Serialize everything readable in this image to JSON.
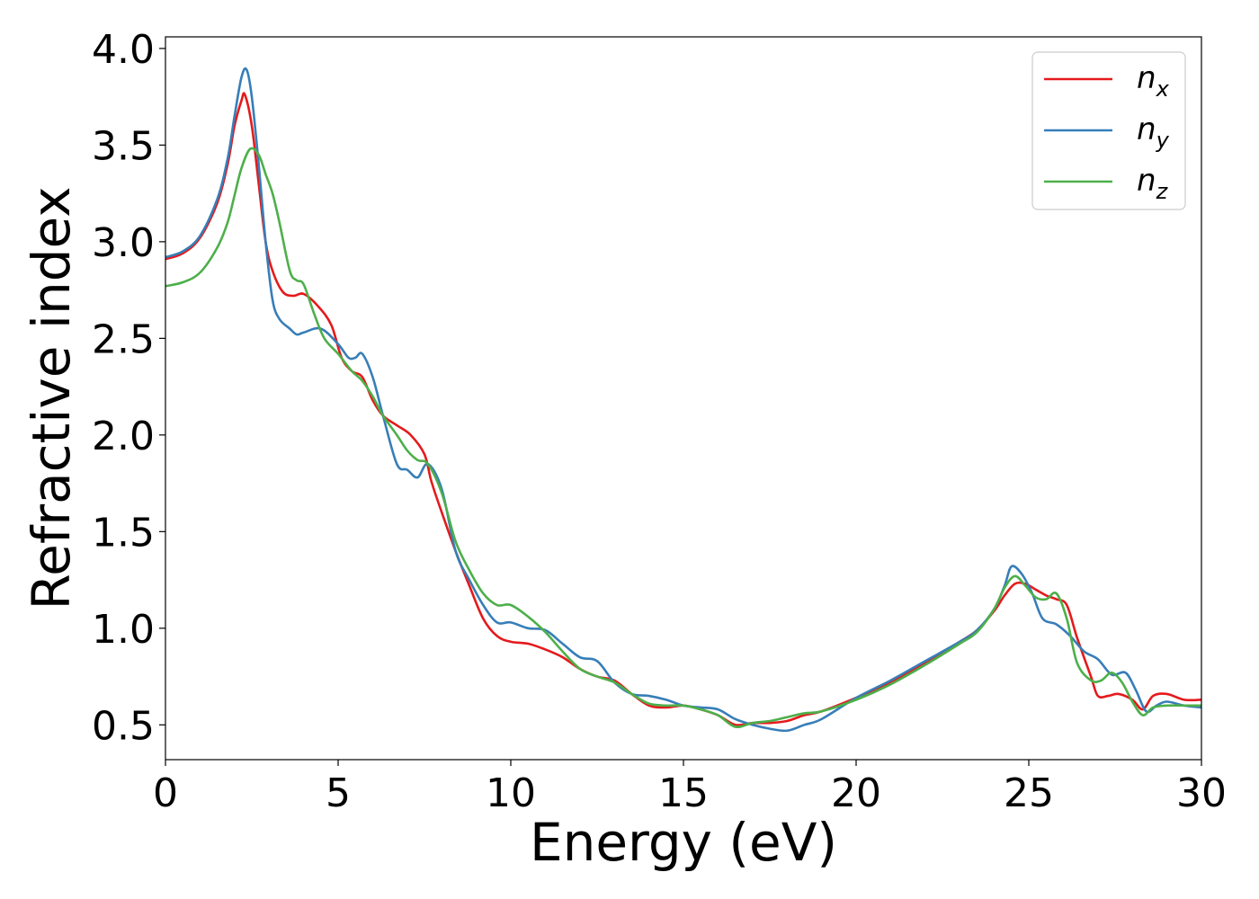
{
  "chart_data": {
    "type": "line",
    "title": "",
    "xlabel": "Energy (eV)",
    "ylabel": "Refractive index",
    "xlim": [
      0,
      30
    ],
    "ylim": [
      0.32,
      4.06
    ],
    "xticks": [
      0,
      5,
      10,
      15,
      20,
      25,
      30
    ],
    "xtick_labels": [
      "0",
      "5",
      "10",
      "15",
      "20",
      "25",
      "30"
    ],
    "yticks": [
      0.5,
      1.0,
      1.5,
      2.0,
      2.5,
      3.0,
      3.5,
      4.0
    ],
    "ytick_labels": [
      "0.5",
      "1.0",
      "1.5",
      "2.0",
      "2.5",
      "3.0",
      "3.5",
      "4.0"
    ],
    "grid": false,
    "legend_position": "top-right",
    "series": [
      {
        "name": "n_x",
        "label_main": "n",
        "label_sub": "x",
        "color": "#e41a1c",
        "x": [
          0,
          0.5,
          1.0,
          1.5,
          1.8,
          2.0,
          2.2,
          2.3,
          2.5,
          2.7,
          2.9,
          3.1,
          3.4,
          3.7,
          4.0,
          4.4,
          4.8,
          5.1,
          5.4,
          5.7,
          6.0,
          6.3,
          6.7,
          7.1,
          7.5,
          7.7,
          8.0,
          8.4,
          8.8,
          9.2,
          9.6,
          10.0,
          10.5,
          11.0,
          11.5,
          12.0,
          12.5,
          13.0,
          13.5,
          14.0,
          14.5,
          15.0,
          15.5,
          16.0,
          16.5,
          17.0,
          17.5,
          18.0,
          18.5,
          19.0,
          20.0,
          21.0,
          22.0,
          23.0,
          23.5,
          24.0,
          24.3,
          24.6,
          24.9,
          25.2,
          25.5,
          25.8,
          26.1,
          26.4,
          26.8,
          27.0,
          27.3,
          27.6,
          28.0,
          28.3,
          28.6,
          29.0,
          29.5,
          30.0
        ],
        "y": [
          2.91,
          2.94,
          3.02,
          3.2,
          3.4,
          3.6,
          3.73,
          3.76,
          3.6,
          3.3,
          3.0,
          2.85,
          2.74,
          2.72,
          2.73,
          2.67,
          2.57,
          2.4,
          2.33,
          2.3,
          2.18,
          2.1,
          2.05,
          2.0,
          1.9,
          1.76,
          1.6,
          1.4,
          1.22,
          1.05,
          0.96,
          0.93,
          0.92,
          0.89,
          0.85,
          0.79,
          0.75,
          0.73,
          0.66,
          0.6,
          0.59,
          0.6,
          0.58,
          0.55,
          0.5,
          0.51,
          0.51,
          0.52,
          0.55,
          0.57,
          0.64,
          0.72,
          0.82,
          0.93,
          0.99,
          1.09,
          1.17,
          1.23,
          1.23,
          1.2,
          1.17,
          1.15,
          1.12,
          0.95,
          0.75,
          0.65,
          0.65,
          0.66,
          0.63,
          0.58,
          0.65,
          0.66,
          0.63,
          0.63
        ]
      },
      {
        "name": "n_y",
        "label_main": "n",
        "label_sub": "y",
        "color": "#377eb8",
        "x": [
          0,
          0.5,
          1.0,
          1.5,
          1.8,
          2.0,
          2.2,
          2.35,
          2.5,
          2.7,
          2.9,
          3.1,
          3.3,
          3.6,
          3.8,
          4.0,
          4.5,
          5.0,
          5.3,
          5.5,
          5.7,
          6.0,
          6.3,
          6.7,
          7.0,
          7.3,
          7.6,
          8.0,
          8.4,
          8.8,
          9.2,
          9.6,
          10.0,
          10.5,
          11.0,
          11.5,
          12.0,
          12.5,
          13.0,
          13.5,
          14.0,
          14.5,
          15.0,
          15.5,
          16.0,
          16.5,
          17.0,
          17.5,
          18.0,
          18.5,
          19.0,
          20.0,
          21.0,
          22.0,
          23.0,
          23.5,
          24.0,
          24.3,
          24.5,
          24.8,
          25.1,
          25.4,
          25.8,
          26.2,
          26.6,
          27.0,
          27.4,
          27.8,
          28.1,
          28.4,
          28.7,
          29.0,
          29.5,
          30.0
        ],
        "y": [
          2.92,
          2.95,
          3.03,
          3.22,
          3.43,
          3.65,
          3.85,
          3.89,
          3.75,
          3.4,
          3.0,
          2.7,
          2.6,
          2.55,
          2.52,
          2.53,
          2.55,
          2.47,
          2.4,
          2.4,
          2.42,
          2.3,
          2.1,
          1.85,
          1.82,
          1.78,
          1.85,
          1.72,
          1.4,
          1.25,
          1.12,
          1.03,
          1.03,
          1.0,
          0.99,
          0.92,
          0.85,
          0.83,
          0.72,
          0.66,
          0.65,
          0.63,
          0.6,
          0.59,
          0.58,
          0.53,
          0.5,
          0.48,
          0.47,
          0.5,
          0.53,
          0.64,
          0.73,
          0.83,
          0.93,
          0.99,
          1.1,
          1.22,
          1.32,
          1.28,
          1.18,
          1.05,
          1.02,
          0.96,
          0.88,
          0.84,
          0.76,
          0.77,
          0.68,
          0.57,
          0.6,
          0.62,
          0.6,
          0.59
        ]
      },
      {
        "name": "n_z",
        "label_main": "n",
        "label_sub": "z",
        "color": "#4daf4a",
        "x": [
          0,
          0.5,
          1.0,
          1.5,
          1.8,
          2.0,
          2.2,
          2.45,
          2.7,
          2.9,
          3.1,
          3.3,
          3.6,
          3.8,
          4.0,
          4.3,
          4.6,
          5.0,
          5.4,
          5.7,
          6.0,
          6.3,
          6.7,
          7.0,
          7.3,
          7.6,
          8.0,
          8.4,
          8.8,
          9.2,
          9.6,
          10.0,
          10.5,
          11.0,
          11.5,
          12.0,
          12.5,
          13.0,
          13.5,
          14.0,
          14.5,
          15.0,
          15.5,
          16.0,
          16.5,
          17.0,
          17.5,
          18.0,
          18.5,
          19.0,
          20.0,
          21.0,
          22.0,
          23.0,
          23.5,
          24.0,
          24.3,
          24.6,
          24.9,
          25.2,
          25.5,
          25.8,
          26.1,
          26.4,
          26.8,
          27.1,
          27.4,
          27.7,
          28.0,
          28.3,
          28.6,
          29.0,
          29.5,
          30.0
        ],
        "y": [
          2.77,
          2.79,
          2.84,
          2.97,
          3.1,
          3.24,
          3.38,
          3.48,
          3.45,
          3.35,
          3.25,
          3.1,
          2.85,
          2.8,
          2.78,
          2.63,
          2.5,
          2.42,
          2.33,
          2.28,
          2.2,
          2.1,
          2.0,
          1.92,
          1.87,
          1.85,
          1.7,
          1.45,
          1.3,
          1.18,
          1.12,
          1.12,
          1.06,
          0.98,
          0.88,
          0.79,
          0.75,
          0.72,
          0.66,
          0.61,
          0.6,
          0.6,
          0.58,
          0.55,
          0.49,
          0.51,
          0.52,
          0.54,
          0.56,
          0.57,
          0.63,
          0.71,
          0.81,
          0.92,
          0.98,
          1.1,
          1.21,
          1.27,
          1.22,
          1.16,
          1.15,
          1.18,
          1.05,
          0.82,
          0.73,
          0.73,
          0.77,
          0.72,
          0.62,
          0.55,
          0.59,
          0.6,
          0.6,
          0.6
        ]
      }
    ]
  }
}
